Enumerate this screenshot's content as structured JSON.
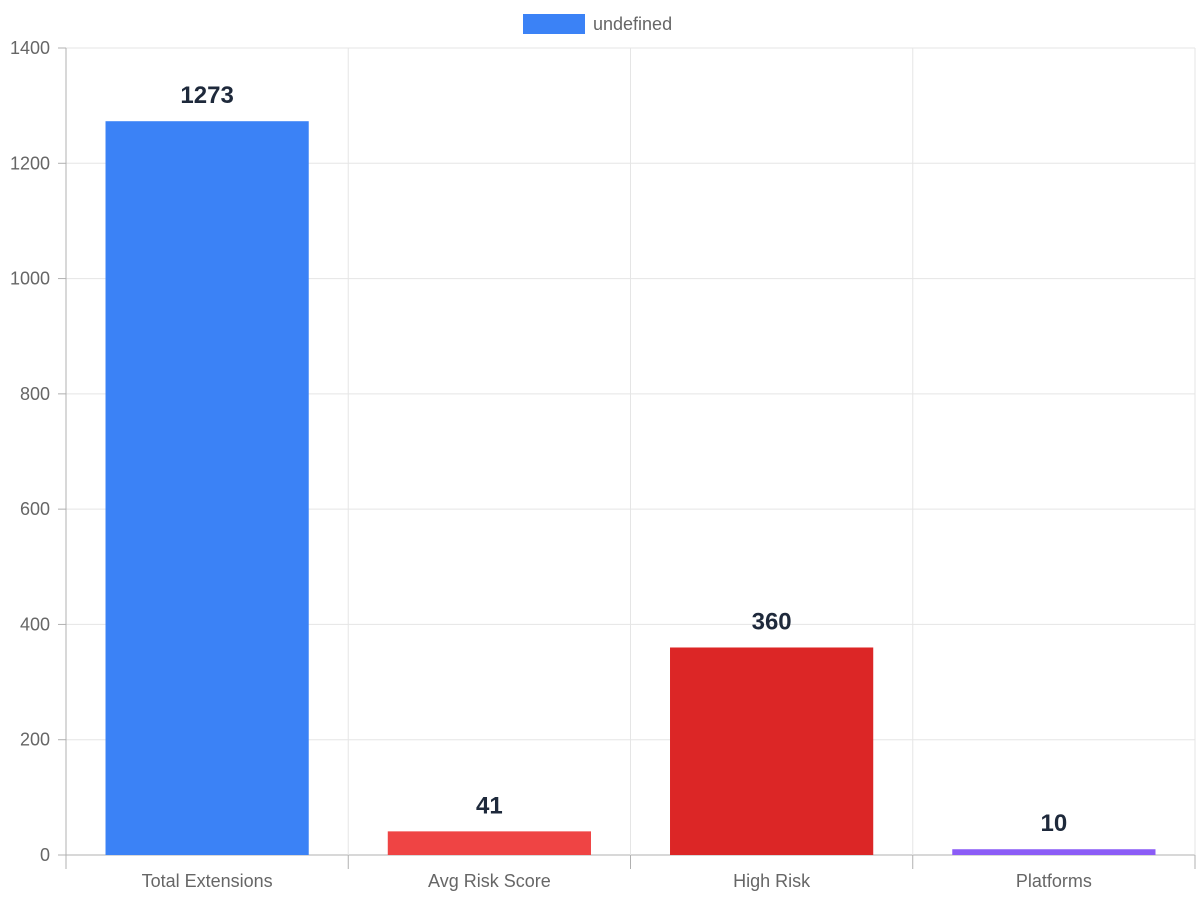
{
  "chart_data": {
    "type": "bar",
    "categories": [
      "Total Extensions",
      "Avg Risk Score",
      "High Risk",
      "Platforms"
    ],
    "series": [
      {
        "name": "undefined",
        "values": [
          1273,
          41,
          360,
          10
        ],
        "colors": [
          "#3b82f6",
          "#ef4444",
          "#dc2626",
          "#8b5cf6"
        ]
      }
    ],
    "y_ticks": [
      0,
      200,
      400,
      600,
      800,
      1000,
      1200,
      1400
    ],
    "ylim": [
      0,
      1400
    ],
    "grid": true,
    "legend": {
      "position": "top",
      "label": "undefined",
      "color": "#3b82f6"
    },
    "data_labels": [
      "1273",
      "41",
      "360",
      "10"
    ],
    "title": "",
    "xlabel": "",
    "ylabel": ""
  }
}
